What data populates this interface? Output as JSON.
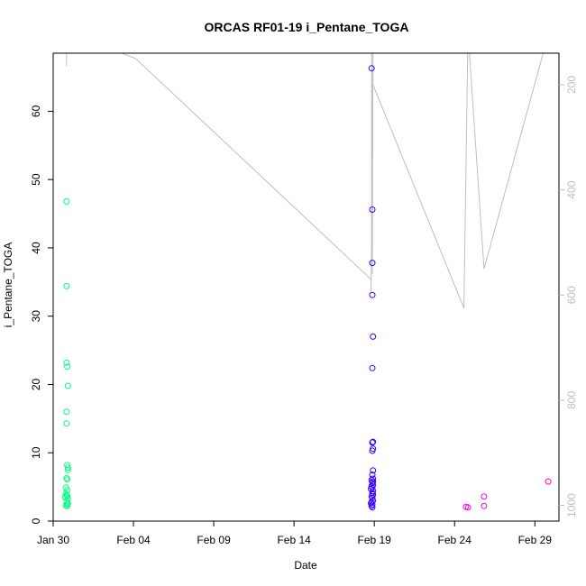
{
  "chart_data": {
    "type": "scatter",
    "title": "ORCAS RF01-19 i_Pentane_TOGA",
    "xlabel": "Date",
    "ylabel": "i_Pentane_TOGA",
    "x_ticks": [
      "Jan 30",
      "Feb 04",
      "Feb 09",
      "Feb 14",
      "Feb 19",
      "Feb 24",
      "Feb 29"
    ],
    "xlim": [
      "2016-01-30",
      "2016-03-01T12:00"
    ],
    "ylim": [
      0,
      68.5
    ],
    "y_ticks": [
      0,
      10,
      20,
      30,
      40,
      50,
      60
    ],
    "y2_label": "",
    "y2_reversed": true,
    "y2lim": [
      1030,
      140
    ],
    "y2_ticks": [
      200,
      400,
      600,
      800,
      1000
    ],
    "grid": false,
    "series": [
      {
        "color": "#00FF7F",
        "points": [
          [
            "2016-01-30T20:00",
            46.8
          ],
          [
            "2016-01-30T20:00",
            34.4
          ],
          [
            "2016-01-30T20:00",
            23.2
          ],
          [
            "2016-01-30T21:00",
            22.6
          ],
          [
            "2016-01-30T22:00",
            19.8
          ],
          [
            "2016-01-30T20:00",
            16.0
          ],
          [
            "2016-01-30T20:00",
            14.3
          ],
          [
            "2016-01-30T21:00",
            8.2
          ],
          [
            "2016-01-30T22:00",
            7.8
          ],
          [
            "2016-01-30T22:00",
            7.5
          ],
          [
            "2016-01-30T20:00",
            6.3
          ],
          [
            "2016-01-30T21:00",
            6.1
          ],
          [
            "2016-01-30T19:00",
            4.9
          ],
          [
            "2016-01-30T21:00",
            4.5
          ],
          [
            "2016-01-30T19:00",
            4.0
          ],
          [
            "2016-01-30T20:00",
            3.8
          ],
          [
            "2016-01-30T21:00",
            3.7
          ],
          [
            "2016-01-30T18:00",
            3.5
          ],
          [
            "2016-01-30T22:00",
            3.3
          ],
          [
            "2016-01-30T20:00",
            3.0
          ],
          [
            "2016-01-30T22:00",
            2.6
          ],
          [
            "2016-01-30T21:00",
            2.5
          ],
          [
            "2016-01-30T19:00",
            2.3
          ],
          [
            "2016-01-30T21:00",
            2.2
          ]
        ]
      },
      {
        "color": "#3A00FF",
        "points": [
          [
            "2016-02-18T20:00",
            66.3
          ],
          [
            "2016-02-18T21:00",
            45.6
          ],
          [
            "2016-02-18T21:00",
            37.8
          ],
          [
            "2016-02-18T21:00",
            33.1
          ],
          [
            "2016-02-18T22:00",
            27.0
          ],
          [
            "2016-02-18T21:00",
            22.4
          ],
          [
            "2016-02-18T22:00",
            11.6
          ],
          [
            "2016-02-18T21:00",
            11.5
          ],
          [
            "2016-02-18T22:00",
            10.6
          ],
          [
            "2016-02-18T21:00",
            10.3
          ],
          [
            "2016-02-18T22:00",
            7.4
          ],
          [
            "2016-02-18T21:00",
            6.8
          ],
          [
            "2016-02-18T22:00",
            6.2
          ],
          [
            "2016-02-18T20:00",
            6.0
          ],
          [
            "2016-02-18T22:00",
            5.8
          ],
          [
            "2016-02-18T21:00",
            5.6
          ],
          [
            "2016-02-18T22:00",
            5.3
          ],
          [
            "2016-02-18T20:00",
            5.1
          ],
          [
            "2016-02-18T21:00",
            4.9
          ],
          [
            "2016-02-18T19:00",
            4.7
          ],
          [
            "2016-02-18T22:00",
            4.4
          ],
          [
            "2016-02-18T21:00",
            4.1
          ],
          [
            "2016-02-18T22:00",
            3.9
          ],
          [
            "2016-02-18T20:00",
            3.6
          ],
          [
            "2016-02-18T21:00",
            3.4
          ],
          [
            "2016-02-18T22:00",
            3.0
          ],
          [
            "2016-02-18T20:00",
            2.8
          ],
          [
            "2016-02-18T19:00",
            2.6
          ],
          [
            "2016-02-18T21:00",
            2.4
          ],
          [
            "2016-02-18T20:00",
            2.2
          ],
          [
            "2016-02-18T21:00",
            2.0
          ]
        ]
      },
      {
        "color": "#EE00EE",
        "points": [
          [
            "2016-02-24T17:00",
            2.1
          ],
          [
            "2016-02-24T20:00",
            2.0
          ],
          [
            "2016-02-25T20:00",
            3.6
          ],
          [
            "2016-02-25T20:00",
            2.2
          ],
          [
            "2016-02-29T20:00",
            5.8
          ]
        ]
      }
    ],
    "y2_line": {
      "color": "#bebebe",
      "points": [
        [
          "2016-01-30T20:00",
          165
        ],
        [
          "2016-01-30T20:00",
          100
        ],
        [
          "2016-02-04T03:00",
          150
        ],
        [
          "2016-02-18T19:00",
          570
        ],
        [
          "2016-02-18T19:00",
          595
        ],
        [
          "2016-02-18T20:00",
          500
        ],
        [
          "2016-02-18T20:00",
          100
        ],
        [
          "2016-02-18T21:00",
          560
        ],
        [
          "2016-02-18T22:00",
          100
        ],
        [
          "2016-02-18T22:00",
          200
        ],
        [
          "2016-02-24T14:00",
          625
        ],
        [
          "2016-02-24T20:00",
          100
        ],
        [
          "2016-02-25T20:00",
          550
        ],
        [
          "2016-02-29T21:00",
          100
        ]
      ]
    }
  }
}
